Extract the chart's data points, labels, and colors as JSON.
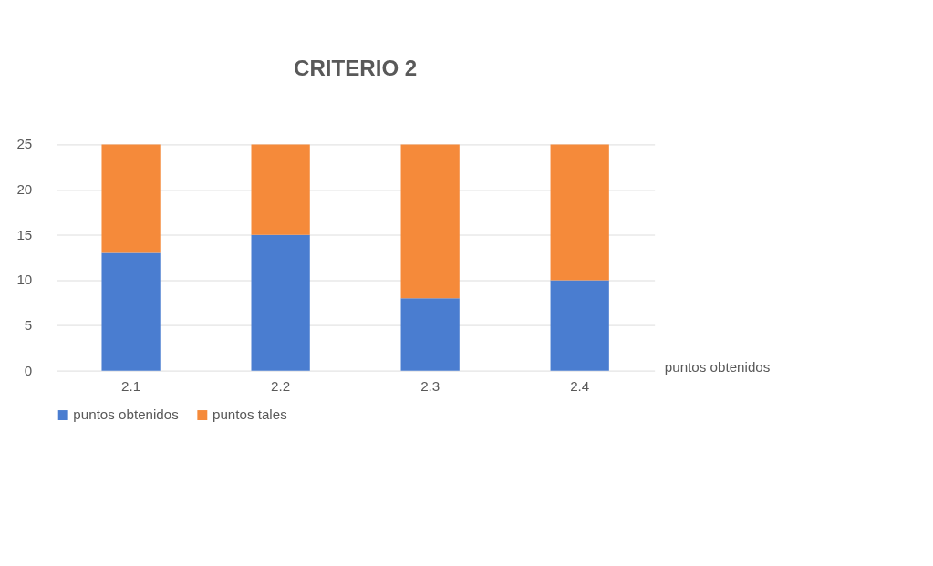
{
  "chart_data": {
    "type": "bar",
    "title": "CRITERIO 2",
    "xlabel": "puntos obtenidos",
    "categories": [
      "2.1",
      "2.2",
      "2.3",
      "2.4"
    ],
    "series": [
      {
        "name": "puntos obtenidos",
        "color": "#4a7dd0",
        "values": [
          13,
          15,
          8,
          10
        ]
      },
      {
        "name": "puntos tales",
        "color": "#f58a3a",
        "values": [
          12,
          10,
          17,
          15
        ]
      }
    ],
    "stacked": true,
    "ylim": [
      0,
      25
    ],
    "yticks": [
      0,
      5,
      10,
      15,
      20,
      25
    ],
    "grid": "y",
    "legend": "bottom"
  }
}
